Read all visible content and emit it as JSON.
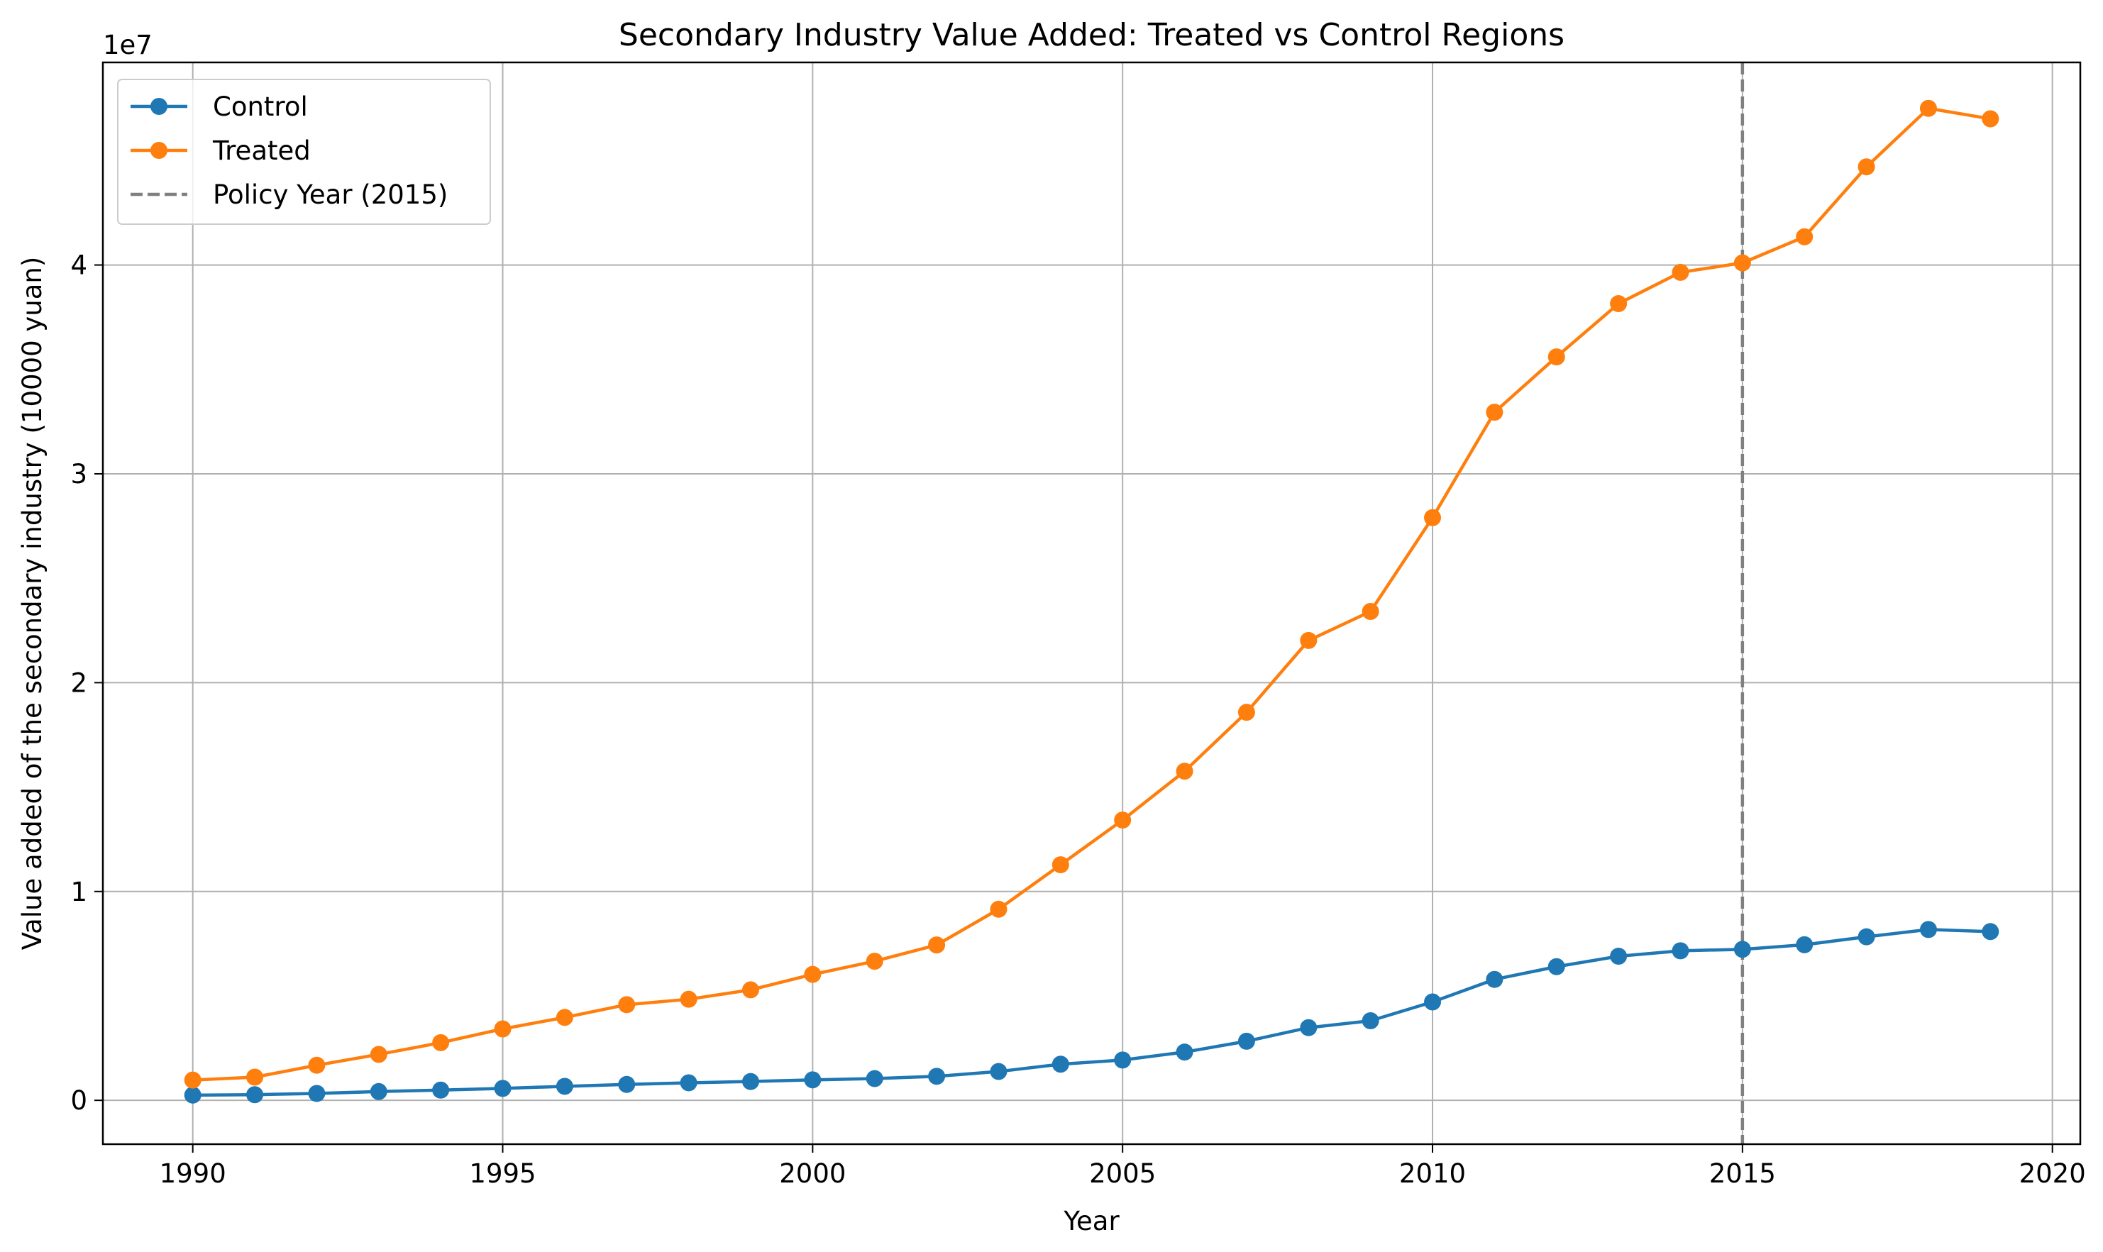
{
  "chart_data": {
    "type": "line",
    "title": "Secondary Industry Value Added: Treated vs Control Regions",
    "xlabel": "Year",
    "ylabel": "Value added of the secondary industry (10000 yuan)",
    "y_offset_text": "1e7",
    "xlim": [
      1988.55,
      2020.45
    ],
    "ylim": [
      -2100000,
      49700000
    ],
    "y_scale_factor": 10000000,
    "xticks": [
      1990,
      1995,
      2000,
      2005,
      2010,
      2015,
      2020
    ],
    "yticks": [
      0,
      1,
      2,
      3,
      4
    ],
    "grid": true,
    "legend_position": "upper-left",
    "x": [
      1990,
      1991,
      1992,
      1993,
      1994,
      1995,
      1996,
      1997,
      1998,
      1999,
      2000,
      2001,
      2002,
      2003,
      2004,
      2005,
      2006,
      2007,
      2008,
      2009,
      2010,
      2011,
      2012,
      2013,
      2014,
      2015,
      2016,
      2017,
      2018,
      2019
    ],
    "series": [
      {
        "name": "Control",
        "color": "#1f77b4",
        "marker": "circle",
        "values": [
          250000,
          270000,
          330000,
          420000,
          490000,
          570000,
          670000,
          760000,
          840000,
          900000,
          980000,
          1040000,
          1150000,
          1380000,
          1730000,
          1930000,
          2310000,
          2830000,
          3480000,
          3810000,
          4710000,
          5790000,
          6400000,
          6900000,
          7160000,
          7230000,
          7450000,
          7830000,
          8180000,
          8080000
        ]
      },
      {
        "name": "Treated",
        "color": "#ff7f0e",
        "marker": "circle",
        "values": [
          970000,
          1110000,
          1680000,
          2200000,
          2760000,
          3420000,
          3970000,
          4580000,
          4840000,
          5290000,
          6030000,
          6660000,
          7440000,
          9150000,
          11280000,
          13420000,
          15760000,
          18580000,
          22020000,
          23410000,
          27900000,
          32950000,
          35600000,
          38150000,
          39650000,
          40100000,
          41350000,
          44700000,
          47500000,
          47000000
        ]
      }
    ],
    "reference_line": {
      "name": "Policy Year (2015)",
      "x": 2015,
      "color": "#808080",
      "style": "dashed"
    }
  }
}
